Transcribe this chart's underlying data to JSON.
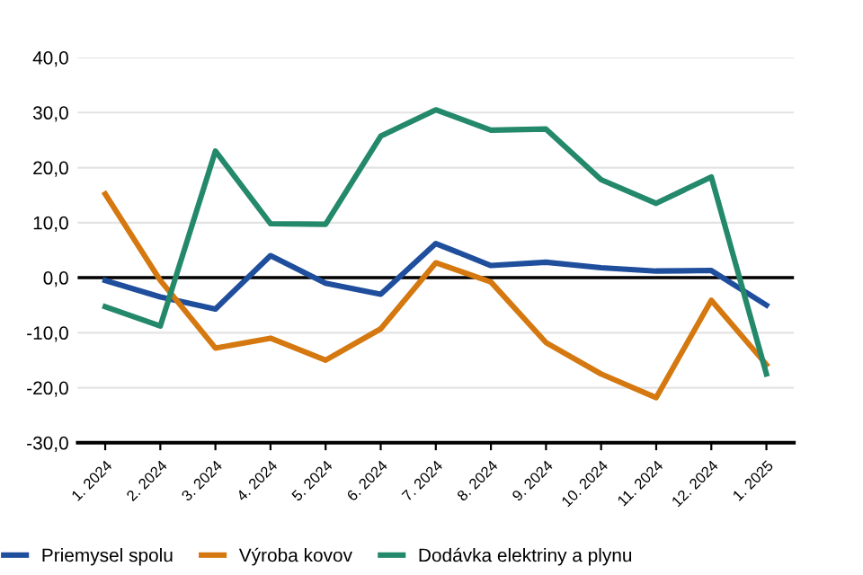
{
  "chart_data": {
    "type": "line",
    "categories": [
      "1. 2024",
      "2. 2024",
      "3. 2024",
      "4. 2024",
      "5. 2024",
      "6. 2024",
      "7. 2024",
      "8. 2024",
      "9. 2024",
      "10. 2024",
      "11. 2024",
      "12. 2024",
      "1. 2025"
    ],
    "series": [
      {
        "name": "Priemysel spolu",
        "color": "#1f4e9c",
        "values": [
          -0.5,
          -3.5,
          -5.7,
          4.0,
          -1.0,
          -3.0,
          6.2,
          2.2,
          2.8,
          1.8,
          1.2,
          1.3,
          -5.0
        ]
      },
      {
        "name": "Výroba kovov",
        "color": "#d4780f",
        "values": [
          15.2,
          -0.5,
          -12.8,
          -11.0,
          -15.0,
          -9.3,
          2.7,
          -0.8,
          -11.8,
          -17.5,
          -21.8,
          -4.1,
          -15.8
        ]
      },
      {
        "name": "Dodávka elektriny a plynu",
        "color": "#23896a",
        "values": [
          -5.3,
          -8.8,
          23.0,
          9.8,
          9.7,
          25.7,
          30.5,
          26.8,
          27.0,
          17.8,
          13.5,
          18.3,
          -17.5
        ]
      }
    ],
    "ylim": [
      -30,
      40
    ],
    "yticks": [
      {
        "value": -30,
        "label": "-30,0"
      },
      {
        "value": -20,
        "label": "-20,0"
      },
      {
        "value": -10,
        "label": "-10,0"
      },
      {
        "value": 0,
        "label": "0,0"
      },
      {
        "value": 10,
        "label": "10,0"
      },
      {
        "value": 20,
        "label": "20,0"
      },
      {
        "value": 30,
        "label": "30,0"
      },
      {
        "value": 40,
        "label": "40,0"
      }
    ],
    "ref_lines": [
      {
        "axis": "y",
        "value": 0,
        "label": null,
        "color": "#000000"
      }
    ],
    "grid": "y",
    "legend": "bottom",
    "marker": "none",
    "line_style": "solid"
  }
}
